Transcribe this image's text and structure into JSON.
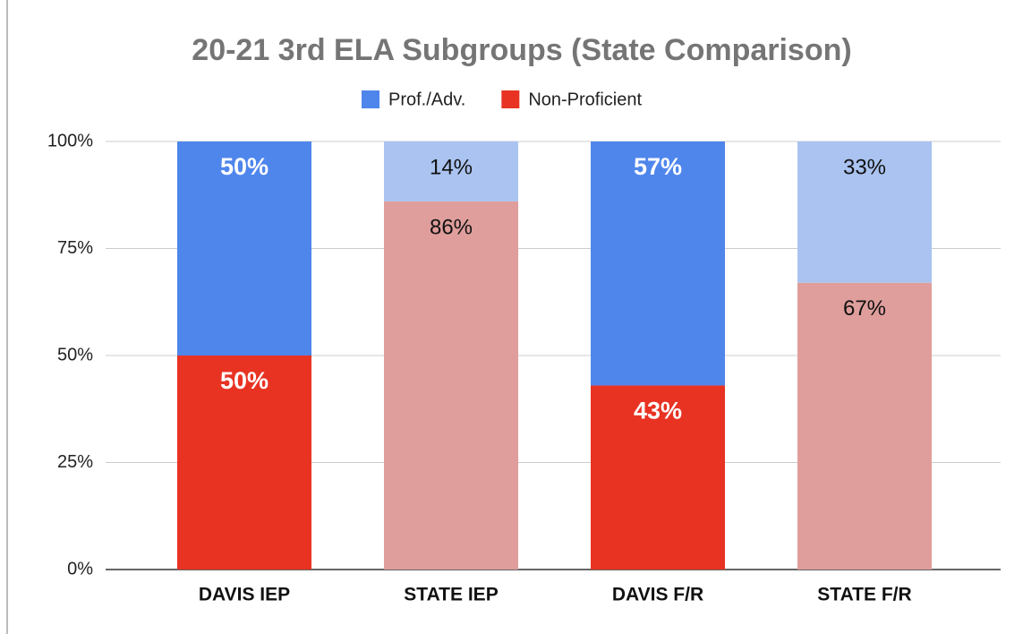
{
  "chart_data": {
    "type": "stacked_bar",
    "title": "20-21 3rd ELA Subgroups (State Comparison)",
    "categories": [
      "DAVIS IEP",
      "STATE IEP",
      "DAVIS F/R",
      "STATE F/R"
    ],
    "series": [
      {
        "name": "Prof./Adv.",
        "color": "#4f86ec",
        "colors": [
          "#4f86ec",
          "#aac3f0",
          "#4f86ec",
          "#aac3f0"
        ],
        "values": [
          50,
          14,
          57,
          33
        ],
        "value_labels": [
          "50%",
          "14%",
          "57%",
          "33%"
        ]
      },
      {
        "name": "Non-Proficient",
        "color": "#e83323",
        "colors": [
          "#e83323",
          "#df9e9c",
          "#e83323",
          "#df9e9c"
        ],
        "values": [
          50,
          86,
          43,
          67
        ],
        "value_labels": [
          "50%",
          "86%",
          "43%",
          "67%"
        ]
      }
    ],
    "ylim": [
      0,
      100
    ],
    "yticks": [
      {
        "value": 0,
        "label": "0%"
      },
      {
        "value": 25,
        "label": "25%"
      },
      {
        "value": 50,
        "label": "50%"
      },
      {
        "value": 75,
        "label": "75%"
      },
      {
        "value": 100,
        "label": "100%"
      }
    ],
    "grid": true,
    "legend": "top"
  }
}
